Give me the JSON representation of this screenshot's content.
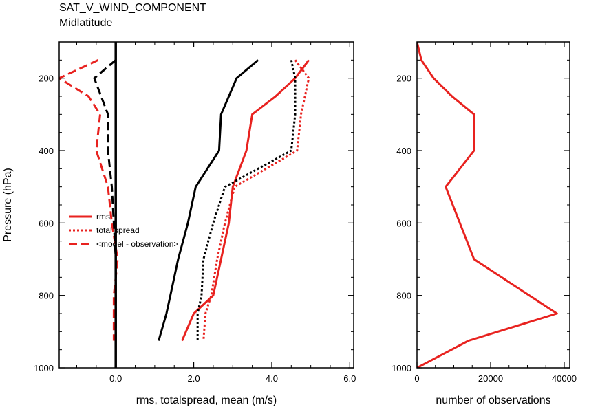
{
  "title": "SAT_V_WIND_COMPONENT",
  "subtitle": "Midlatitude",
  "colors": {
    "red": "#e8221f",
    "black": "#000000"
  },
  "chart_data": [
    {
      "type": "line",
      "xlabel": "rms, totalspread, mean (m/s)",
      "ylabel": "Pressure (hPa)",
      "xlim": [
        -1.45,
        6.1
      ],
      "ylim": [
        1000,
        100
      ],
      "xticks": [
        0.0,
        2.0,
        4.0,
        6.0
      ],
      "xtick_labels": [
        "0.0",
        "2.0",
        "4.0",
        "6.0"
      ],
      "yticks": [
        200,
        400,
        600,
        800,
        1000
      ],
      "ytick_labels": [
        "200",
        "400",
        "600",
        "800",
        "1000"
      ],
      "legend_position": "left",
      "legend": [
        {
          "label": "rms",
          "style": "solid",
          "color": "#e8221f"
        },
        {
          "label": "total spread",
          "style": "dotted",
          "color": "#e8221f"
        },
        {
          "label": "<model - observation>",
          "style": "dashed",
          "color": "#e8221f"
        }
      ],
      "series": [
        {
          "color": "#e8221f",
          "style": "solid",
          "points": [
            [
              4.95,
              150
            ],
            [
              4.6,
              200
            ],
            [
              4.1,
              250
            ],
            [
              3.5,
              300
            ],
            [
              3.35,
              400
            ],
            [
              3.0,
              500
            ],
            [
              2.9,
              600
            ],
            [
              2.7,
              700
            ],
            [
              2.5,
              800
            ],
            [
              2.0,
              850
            ],
            [
              1.7,
              925
            ]
          ]
        },
        {
          "color": "#e8221f",
          "style": "dotted",
          "points": [
            [
              4.6,
              150
            ],
            [
              4.95,
              200
            ],
            [
              4.75,
              300
            ],
            [
              4.65,
              400
            ],
            [
              3.05,
              500
            ],
            [
              2.8,
              600
            ],
            [
              2.6,
              700
            ],
            [
              2.45,
              800
            ],
            [
              2.3,
              850
            ],
            [
              2.25,
              925
            ]
          ]
        },
        {
          "color": "#e8221f",
          "style": "dashed",
          "points": [
            [
              -0.45,
              150
            ],
            [
              -1.45,
              200
            ],
            [
              -0.7,
              250
            ],
            [
              -0.4,
              300
            ],
            [
              -0.5,
              400
            ],
            [
              -0.2,
              500
            ],
            [
              -0.1,
              600
            ],
            [
              0.05,
              700
            ],
            [
              -0.05,
              800
            ],
            [
              -0.05,
              850
            ],
            [
              -0.05,
              925
            ]
          ]
        },
        {
          "color": "#000000",
          "style": "solid",
          "points": [
            [
              3.65,
              150
            ],
            [
              3.1,
              200
            ],
            [
              2.7,
              300
            ],
            [
              2.65,
              400
            ],
            [
              2.05,
              500
            ],
            [
              1.85,
              600
            ],
            [
              1.6,
              700
            ],
            [
              1.4,
              800
            ],
            [
              1.3,
              850
            ],
            [
              1.1,
              925
            ]
          ]
        },
        {
          "color": "#000000",
          "style": "dotted",
          "points": [
            [
              4.5,
              150
            ],
            [
              4.6,
              200
            ],
            [
              4.6,
              300
            ],
            [
              4.5,
              400
            ],
            [
              2.8,
              500
            ],
            [
              2.5,
              600
            ],
            [
              2.25,
              700
            ],
            [
              2.2,
              800
            ],
            [
              2.1,
              850
            ],
            [
              2.1,
              925
            ]
          ]
        },
        {
          "color": "#000000",
          "style": "dashed",
          "points": [
            [
              0.0,
              150
            ],
            [
              -0.55,
              200
            ],
            [
              -0.2,
              300
            ],
            [
              -0.2,
              400
            ],
            [
              -0.1,
              500
            ],
            [
              -0.05,
              600
            ],
            [
              0.0,
              700
            ],
            [
              0.0,
              800
            ],
            [
              0.0,
              850
            ],
            [
              0.0,
              925
            ]
          ]
        },
        {
          "color": "#000000",
          "style": "solid",
          "width": 3.5,
          "points": [
            [
              0.0,
              100
            ],
            [
              0.0,
              1000
            ]
          ]
        }
      ]
    },
    {
      "type": "line",
      "xlabel": "number of observations",
      "ylabel": "",
      "xlim": [
        0,
        41500
      ],
      "ylim": [
        1000,
        100
      ],
      "xticks": [
        0,
        20000,
        40000
      ],
      "xtick_labels": [
        "0",
        "20000",
        "40000"
      ],
      "yticks": [
        200,
        400,
        600,
        800,
        1000
      ],
      "ytick_labels": [
        "200",
        "400",
        "600",
        "800",
        "1000"
      ],
      "series": [
        {
          "color": "#e8221f",
          "style": "solid",
          "points": [
            [
              0,
              100
            ],
            [
              1200,
              150
            ],
            [
              4500,
              200
            ],
            [
              9500,
              250
            ],
            [
              15500,
              300
            ],
            [
              15500,
              400
            ],
            [
              7800,
              500
            ],
            [
              15500,
              700
            ],
            [
              38000,
              850
            ],
            [
              14000,
              925
            ],
            [
              0,
              1000
            ]
          ]
        }
      ]
    }
  ]
}
